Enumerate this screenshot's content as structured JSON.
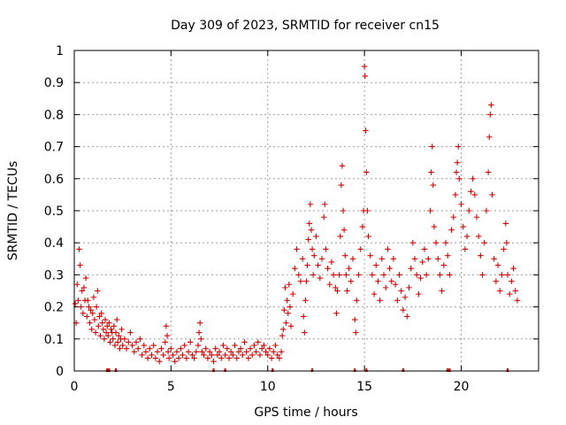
{
  "chart_data": {
    "type": "scatter",
    "title": "Day 309 of 2023, SRMTID for receiver cn15",
    "xlabel": "GPS time / hours",
    "ylabel": "SRMTID / TECUs",
    "xlim": [
      0,
      24
    ],
    "ylim": [
      0,
      1
    ],
    "xticks": [
      0,
      5,
      10,
      15,
      20
    ],
    "xtick_labels": [
      "0",
      "5",
      "10",
      "15",
      "20"
    ],
    "yticks": [
      0,
      0.1,
      0.2,
      0.3,
      0.4,
      0.5,
      0.6,
      0.7,
      0.8,
      0.9,
      1
    ],
    "ytick_labels": [
      "0",
      "0.1",
      "0.2",
      "0.3",
      "0.4",
      "0.5",
      "0.6",
      "0.7",
      "0.8",
      "0.9",
      "1"
    ],
    "grid": true,
    "marker": "plus",
    "color": "#e00000",
    "series": [
      {
        "name": "SRMTID",
        "points": [
          [
            0.05,
            0.21
          ],
          [
            0.1,
            0.15
          ],
          [
            0.15,
            0.27
          ],
          [
            0.2,
            0.22
          ],
          [
            0.25,
            0.38
          ],
          [
            0.3,
            0.33
          ],
          [
            0.35,
            0.2
          ],
          [
            0.4,
            0.25
          ],
          [
            0.45,
            0.18
          ],
          [
            0.5,
            0.26
          ],
          [
            0.55,
            0.22
          ],
          [
            0.6,
            0.29
          ],
          [
            0.65,
            0.17
          ],
          [
            0.7,
            0.22
          ],
          [
            0.75,
            0.2
          ],
          [
            0.8,
            0.15
          ],
          [
            0.85,
            0.19
          ],
          [
            0.9,
            0.13
          ],
          [
            0.95,
            0.18
          ],
          [
            1.0,
            0.23
          ],
          [
            1.05,
            0.16
          ],
          [
            1.1,
            0.12
          ],
          [
            1.15,
            0.2
          ],
          [
            1.2,
            0.25
          ],
          [
            1.25,
            0.14
          ],
          [
            1.3,
            0.17
          ],
          [
            1.35,
            0.11
          ],
          [
            1.4,
            0.18
          ],
          [
            1.45,
            0.15
          ],
          [
            1.5,
            0.13
          ],
          [
            1.55,
            0.1
          ],
          [
            1.6,
            0.16
          ],
          [
            1.65,
            0.12
          ],
          [
            1.7,
            0.14
          ],
          [
            1.75,
            0.11
          ],
          [
            1.8,
            0.15
          ],
          [
            1.85,
            0.09
          ],
          [
            1.9,
            0.13
          ],
          [
            1.95,
            0.12
          ],
          [
            2.0,
            0.1
          ],
          [
            2.05,
            0.14
          ],
          [
            2.1,
            0.08
          ],
          [
            2.15,
            0.12
          ],
          [
            2.2,
            0.16
          ],
          [
            2.25,
            0.09
          ],
          [
            2.3,
            0.11
          ],
          [
            2.35,
            0.07
          ],
          [
            2.4,
            0.1
          ],
          [
            2.45,
            0.13
          ],
          [
            2.5,
            0.08
          ],
          [
            2.6,
            0.1
          ],
          [
            2.7,
            0.07
          ],
          [
            2.8,
            0.09
          ],
          [
            2.9,
            0.12
          ],
          [
            3.0,
            0.08
          ],
          [
            3.1,
            0.06
          ],
          [
            3.2,
            0.09
          ],
          [
            3.3,
            0.07
          ],
          [
            3.4,
            0.1
          ],
          [
            3.5,
            0.05
          ],
          [
            3.6,
            0.08
          ],
          [
            3.7,
            0.06
          ],
          [
            3.8,
            0.04
          ],
          [
            3.9,
            0.07
          ],
          [
            4.0,
            0.05
          ],
          [
            4.1,
            0.08
          ],
          [
            4.2,
            0.04
          ],
          [
            4.3,
            0.06
          ],
          [
            4.4,
            0.03
          ],
          [
            4.5,
            0.07
          ],
          [
            4.6,
            0.05
          ],
          [
            4.7,
            0.09
          ],
          [
            4.75,
            0.14
          ],
          [
            4.8,
            0.11
          ],
          [
            4.85,
            0.06
          ],
          [
            4.9,
            0.04
          ],
          [
            5.0,
            0.07
          ],
          [
            5.1,
            0.05
          ],
          [
            5.2,
            0.03
          ],
          [
            5.3,
            0.06
          ],
          [
            5.4,
            0.04
          ],
          [
            5.5,
            0.07
          ],
          [
            5.6,
            0.05
          ],
          [
            5.7,
            0.08
          ],
          [
            5.8,
            0.04
          ],
          [
            5.9,
            0.06
          ],
          [
            6.0,
            0.09
          ],
          [
            6.1,
            0.05
          ],
          [
            6.2,
            0.04
          ],
          [
            6.3,
            0.06
          ],
          [
            6.4,
            0.08
          ],
          [
            6.45,
            0.12
          ],
          [
            6.5,
            0.15
          ],
          [
            6.55,
            0.1
          ],
          [
            6.6,
            0.06
          ],
          [
            6.7,
            0.05
          ],
          [
            6.8,
            0.07
          ],
          [
            6.9,
            0.04
          ],
          [
            7.0,
            0.06
          ],
          [
            7.1,
            0.05
          ],
          [
            7.2,
            0.03
          ],
          [
            7.3,
            0.07
          ],
          [
            7.4,
            0.05
          ],
          [
            7.5,
            0.06
          ],
          [
            7.6,
            0.04
          ],
          [
            7.7,
            0.08
          ],
          [
            7.8,
            0.05
          ],
          [
            7.9,
            0.07
          ],
          [
            8.0,
            0.04
          ],
          [
            8.1,
            0.06
          ],
          [
            8.2,
            0.05
          ],
          [
            8.3,
            0.08
          ],
          [
            8.4,
            0.04
          ],
          [
            8.5,
            0.06
          ],
          [
            8.6,
            0.07
          ],
          [
            8.7,
            0.05
          ],
          [
            8.8,
            0.09
          ],
          [
            8.9,
            0.06
          ],
          [
            9.0,
            0.04
          ],
          [
            9.1,
            0.07
          ],
          [
            9.2,
            0.05
          ],
          [
            9.3,
            0.08
          ],
          [
            9.4,
            0.06
          ],
          [
            9.5,
            0.09
          ],
          [
            9.6,
            0.05
          ],
          [
            9.7,
            0.07
          ],
          [
            9.8,
            0.08
          ],
          [
            9.9,
            0.06
          ],
          [
            10.0,
            0.05
          ],
          [
            10.1,
            0.07
          ],
          [
            10.2,
            0.04
          ],
          [
            10.3,
            0.06
          ],
          [
            10.4,
            0.08
          ],
          [
            10.5,
            0.05
          ],
          [
            10.6,
            0.04
          ],
          [
            10.7,
            0.06
          ],
          [
            10.75,
            0.11
          ],
          [
            10.8,
            0.13
          ],
          [
            10.85,
            0.19
          ],
          [
            10.9,
            0.26
          ],
          [
            10.95,
            0.15
          ],
          [
            11.0,
            0.22
          ],
          [
            11.05,
            0.18
          ],
          [
            11.1,
            0.27
          ],
          [
            11.15,
            0.2
          ],
          [
            11.2,
            0.14
          ],
          [
            11.3,
            0.24
          ],
          [
            11.4,
            0.32
          ],
          [
            11.5,
            0.38
          ],
          [
            11.6,
            0.3
          ],
          [
            11.7,
            0.28
          ],
          [
            11.8,
            0.35
          ],
          [
            11.85,
            0.17
          ],
          [
            11.9,
            0.12
          ],
          [
            11.95,
            0.22
          ],
          [
            12.0,
            0.28
          ],
          [
            12.05,
            0.33
          ],
          [
            12.1,
            0.41
          ],
          [
            12.15,
            0.46
          ],
          [
            12.2,
            0.52
          ],
          [
            12.25,
            0.44
          ],
          [
            12.3,
            0.38
          ],
          [
            12.35,
            0.3
          ],
          [
            12.4,
            0.36
          ],
          [
            12.5,
            0.42
          ],
          [
            12.6,
            0.33
          ],
          [
            12.7,
            0.29
          ],
          [
            12.8,
            0.35
          ],
          [
            12.9,
            0.48
          ],
          [
            12.95,
            0.52
          ],
          [
            13.0,
            0.38
          ],
          [
            13.1,
            0.32
          ],
          [
            13.2,
            0.27
          ],
          [
            13.3,
            0.34
          ],
          [
            13.4,
            0.3
          ],
          [
            13.5,
            0.26
          ],
          [
            13.55,
            0.18
          ],
          [
            13.6,
            0.25
          ],
          [
            13.7,
            0.3
          ],
          [
            13.75,
            0.42
          ],
          [
            13.8,
            0.58
          ],
          [
            13.85,
            0.64
          ],
          [
            13.9,
            0.5
          ],
          [
            13.95,
            0.44
          ],
          [
            14.0,
            0.36
          ],
          [
            14.05,
            0.3
          ],
          [
            14.1,
            0.25
          ],
          [
            14.2,
            0.32
          ],
          [
            14.3,
            0.28
          ],
          [
            14.4,
            0.35
          ],
          [
            14.5,
            0.16
          ],
          [
            14.55,
            0.12
          ],
          [
            14.6,
            0.22
          ],
          [
            14.7,
            0.3
          ],
          [
            14.8,
            0.38
          ],
          [
            14.9,
            0.45
          ],
          [
            14.95,
            0.5
          ],
          [
            15.0,
            0.95
          ],
          [
            15.03,
            0.92
          ],
          [
            15.06,
            0.75
          ],
          [
            15.1,
            0.62
          ],
          [
            15.15,
            0.5
          ],
          [
            15.2,
            0.42
          ],
          [
            15.3,
            0.36
          ],
          [
            15.4,
            0.3
          ],
          [
            15.5,
            0.24
          ],
          [
            15.6,
            0.33
          ],
          [
            15.7,
            0.28
          ],
          [
            15.8,
            0.22
          ],
          [
            15.9,
            0.35
          ],
          [
            16.0,
            0.3
          ],
          [
            16.1,
            0.26
          ],
          [
            16.2,
            0.38
          ],
          [
            16.3,
            0.32
          ],
          [
            16.4,
            0.28
          ],
          [
            16.5,
            0.35
          ],
          [
            16.6,
            0.27
          ],
          [
            16.7,
            0.22
          ],
          [
            16.8,
            0.3
          ],
          [
            16.9,
            0.25
          ],
          [
            17.0,
            0.19
          ],
          [
            17.1,
            0.23
          ],
          [
            17.2,
            0.17
          ],
          [
            17.3,
            0.26
          ],
          [
            17.4,
            0.32
          ],
          [
            17.5,
            0.4
          ],
          [
            17.6,
            0.35
          ],
          [
            17.7,
            0.3
          ],
          [
            17.8,
            0.24
          ],
          [
            17.9,
            0.29
          ],
          [
            18.0,
            0.34
          ],
          [
            18.1,
            0.38
          ],
          [
            18.2,
            0.3
          ],
          [
            18.3,
            0.35
          ],
          [
            18.4,
            0.5
          ],
          [
            18.45,
            0.62
          ],
          [
            18.5,
            0.7
          ],
          [
            18.55,
            0.58
          ],
          [
            18.6,
            0.45
          ],
          [
            18.7,
            0.4
          ],
          [
            18.8,
            0.35
          ],
          [
            18.9,
            0.3
          ],
          [
            19.0,
            0.25
          ],
          [
            19.1,
            0.33
          ],
          [
            19.2,
            0.4
          ],
          [
            19.3,
            0.36
          ],
          [
            19.4,
            0.3
          ],
          [
            19.5,
            0.44
          ],
          [
            19.6,
            0.48
          ],
          [
            19.7,
            0.55
          ],
          [
            19.75,
            0.62
          ],
          [
            19.8,
            0.65
          ],
          [
            19.85,
            0.7
          ],
          [
            19.9,
            0.6
          ],
          [
            20.0,
            0.52
          ],
          [
            20.1,
            0.45
          ],
          [
            20.2,
            0.38
          ],
          [
            20.3,
            0.42
          ],
          [
            20.4,
            0.5
          ],
          [
            20.5,
            0.56
          ],
          [
            20.6,
            0.6
          ],
          [
            20.7,
            0.55
          ],
          [
            20.8,
            0.48
          ],
          [
            20.9,
            0.42
          ],
          [
            21.0,
            0.36
          ],
          [
            21.1,
            0.3
          ],
          [
            21.2,
            0.4
          ],
          [
            21.3,
            0.5
          ],
          [
            21.4,
            0.62
          ],
          [
            21.45,
            0.73
          ],
          [
            21.5,
            0.8
          ],
          [
            21.55,
            0.83
          ],
          [
            21.6,
            0.55
          ],
          [
            21.7,
            0.35
          ],
          [
            21.8,
            0.28
          ],
          [
            21.9,
            0.33
          ],
          [
            22.0,
            0.25
          ],
          [
            22.1,
            0.3
          ],
          [
            22.2,
            0.38
          ],
          [
            22.3,
            0.46
          ],
          [
            22.35,
            0.4
          ],
          [
            22.4,
            0.3
          ],
          [
            22.5,
            0.24
          ],
          [
            22.6,
            0.28
          ],
          [
            22.7,
            0.32
          ],
          [
            22.8,
            0.25
          ],
          [
            22.9,
            0.22
          ]
        ]
      }
    ]
  }
}
